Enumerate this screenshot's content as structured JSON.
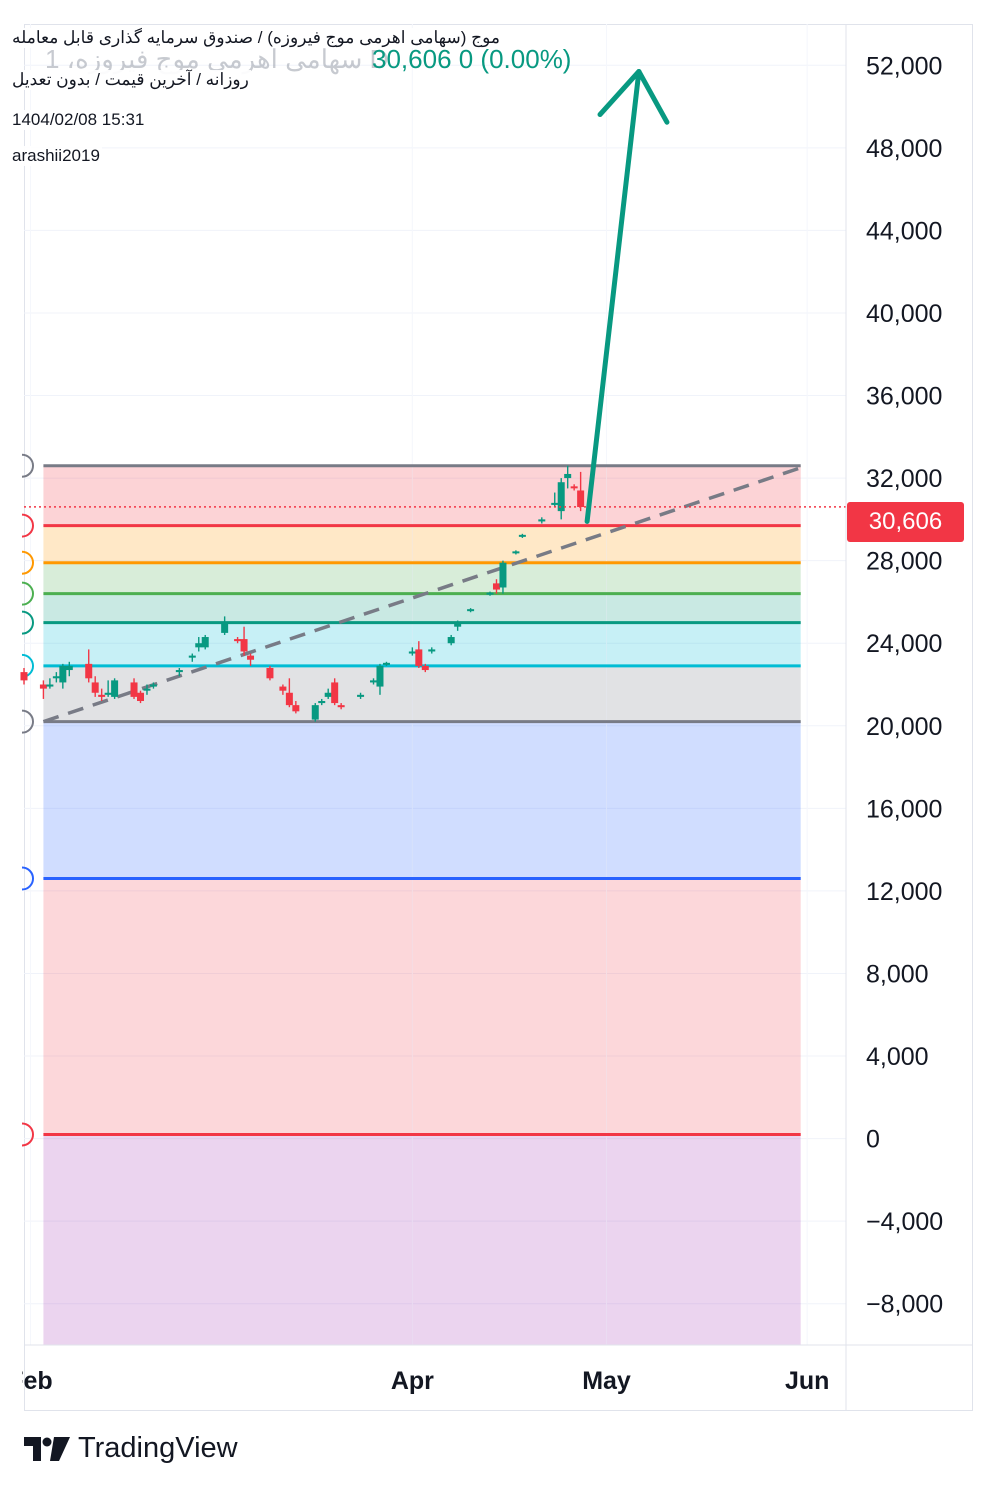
{
  "header": {
    "title_line": "موج (سهامی اهرمی موج فیروزه) / صندوق سرمایه گذاری قابل معامله",
    "subtitle_line": "روزانه / آخرین قیمت / بدون تعدیل",
    "datetime": "1404/02/08 15:31",
    "author": "arashii2019",
    "ghost_symbol": "1 ،سهامی اهرمی موج فیروزه  D",
    "ghost_price": "30,606  0 (0.00%)"
  },
  "branding": {
    "name": "TradingView"
  },
  "colors": {
    "up": "#089981",
    "down": "#f23645",
    "arrow": "#089981",
    "trendline": "#787b86",
    "level_gray": "#787b86",
    "level_red": "#f23645",
    "level_orange": "#ff9800",
    "level_green": "#4caf50",
    "level_teal": "#089981",
    "level_cyan": "#00bcd4",
    "level_blue": "#2962ff"
  },
  "chart_data": {
    "type": "candlestick",
    "title": "",
    "xlabel": "",
    "ylabel": "",
    "last_price": 30606,
    "last_price_label": "30,606",
    "y_ticks": [
      -8000,
      -4000,
      0,
      4000,
      8000,
      12000,
      16000,
      20000,
      24000,
      28000,
      32000,
      36000,
      40000,
      44000,
      48000,
      52000
    ],
    "y_tick_labels": [
      "−8,000",
      "−4,000",
      "0",
      "4,000",
      "8,000",
      "12,000",
      "16,000",
      "20,000",
      "24,000",
      "28,000",
      "32,000",
      "36,000",
      "40,000",
      "44,000",
      "48,000",
      "52,000"
    ],
    "x_ticks": [
      {
        "label": "Feb",
        "date": "2025-02-01"
      },
      {
        "label": "Apr",
        "date": "2025-04-01"
      },
      {
        "label": "May",
        "date": "2025-05-01"
      },
      {
        "label": "Jun",
        "date": "2025-06-01"
      }
    ],
    "x_range": [
      "2025-01-31",
      "2025-06-07"
    ],
    "y_range": [
      -10000,
      54000
    ],
    "grid": true,
    "fib_levels": [
      {
        "price": 32600,
        "color": "#787b86"
      },
      {
        "price": 29700,
        "color": "#f23645"
      },
      {
        "price": 27900,
        "color": "#ff9800"
      },
      {
        "price": 26400,
        "color": "#4caf50"
      },
      {
        "price": 25000,
        "color": "#089981"
      },
      {
        "price": 22900,
        "color": "#00bcd4"
      },
      {
        "price": 20200,
        "color": "#787b86"
      },
      {
        "price": 12600,
        "color": "#2962ff"
      },
      {
        "price": 200,
        "color": "#f23645"
      }
    ],
    "fib_zones": [
      {
        "from": 32600,
        "to": 29700,
        "color": "#f23645",
        "opacity": 0.22
      },
      {
        "from": 29700,
        "to": 27900,
        "color": "#ff9800",
        "opacity": 0.22
      },
      {
        "from": 27900,
        "to": 26400,
        "color": "#4caf50",
        "opacity": 0.22
      },
      {
        "from": 26400,
        "to": 25000,
        "color": "#089981",
        "opacity": 0.22
      },
      {
        "from": 25000,
        "to": 22900,
        "color": "#00bcd4",
        "opacity": 0.22
      },
      {
        "from": 22900,
        "to": 20200,
        "color": "#787b86",
        "opacity": 0.22
      },
      {
        "from": 20200,
        "to": 12600,
        "color": "#2962ff",
        "opacity": 0.22
      },
      {
        "from": 12600,
        "to": 200,
        "color": "#f23645",
        "opacity": 0.2
      },
      {
        "from": 200,
        "to": -10000,
        "color": "#9c27b0",
        "opacity": 0.2
      }
    ],
    "fib_range": [
      "2025-02-03",
      "2025-05-31"
    ],
    "trendline": {
      "from": {
        "date": "2025-02-03",
        "price": 20200
      },
      "to": {
        "date": "2025-05-31",
        "price": 32500
      }
    },
    "arrow": {
      "from": {
        "date": "2025-04-28",
        "price": 29900
      },
      "to": {
        "date": "2025-05-06",
        "price": 51700
      }
    },
    "candles": [
      {
        "date": "2025-01-31",
        "o": 22600,
        "h": 22800,
        "c": 22200,
        "l": 22000
      },
      {
        "date": "2025-02-03",
        "o": 22000,
        "h": 22200,
        "c": 21800,
        "l": 21300
      },
      {
        "date": "2025-02-04",
        "o": 21900,
        "h": 22300,
        "c": 22000,
        "l": 21800
      },
      {
        "date": "2025-02-05",
        "o": 22300,
        "h": 22600,
        "c": 22400,
        "l": 22100
      },
      {
        "date": "2025-02-06",
        "o": 22100,
        "h": 23000,
        "c": 22900,
        "l": 21800
      },
      {
        "date": "2025-02-07",
        "o": 22700,
        "h": 23100,
        "c": 22900,
        "l": 22400
      },
      {
        "date": "2025-02-10",
        "o": 23000,
        "h": 23700,
        "c": 22300,
        "l": 22100
      },
      {
        "date": "2025-02-11",
        "o": 22100,
        "h": 22400,
        "c": 21600,
        "l": 21400
      },
      {
        "date": "2025-02-12",
        "o": 21500,
        "h": 21800,
        "c": 21400,
        "l": 21200
      },
      {
        "date": "2025-02-13",
        "o": 21500,
        "h": 22200,
        "c": 21600,
        "l": 21400
      },
      {
        "date": "2025-02-14",
        "o": 21400,
        "h": 22300,
        "c": 22200,
        "l": 21300
      },
      {
        "date": "2025-02-17",
        "o": 22100,
        "h": 22300,
        "c": 21400,
        "l": 21300
      },
      {
        "date": "2025-02-18",
        "o": 21600,
        "h": 21700,
        "c": 21200,
        "l": 21100
      },
      {
        "date": "2025-02-19",
        "o": 21700,
        "h": 22000,
        "c": 21800,
        "l": 21500
      },
      {
        "date": "2025-02-20",
        "o": 21900,
        "h": 22100,
        "c": 22000,
        "l": 21800
      },
      {
        "date": "2025-02-24",
        "o": 22600,
        "h": 22800,
        "c": 22700,
        "l": 22400
      },
      {
        "date": "2025-02-26",
        "o": 23300,
        "h": 23500,
        "c": 23400,
        "l": 23100
      },
      {
        "date": "2025-02-27",
        "o": 23800,
        "h": 24300,
        "c": 24000,
        "l": 23600
      },
      {
        "date": "2025-02-28",
        "o": 23800,
        "h": 24400,
        "c": 24300,
        "l": 23700
      },
      {
        "date": "2025-03-03",
        "o": 24500,
        "h": 25300,
        "c": 25000,
        "l": 24400
      },
      {
        "date": "2025-03-05",
        "o": 24200,
        "h": 24300,
        "c": 24100,
        "l": 24000
      },
      {
        "date": "2025-03-06",
        "o": 24200,
        "h": 24800,
        "c": 23600,
        "l": 23400
      },
      {
        "date": "2025-03-07",
        "o": 23400,
        "h": 23500,
        "c": 23200,
        "l": 22900
      },
      {
        "date": "2025-03-10",
        "o": 22800,
        "h": 22900,
        "c": 22300,
        "l": 22200
      },
      {
        "date": "2025-03-12",
        "o": 21900,
        "h": 22000,
        "c": 21700,
        "l": 21500
      },
      {
        "date": "2025-03-13",
        "o": 21600,
        "h": 22300,
        "c": 21000,
        "l": 20900
      },
      {
        "date": "2025-03-14",
        "o": 21000,
        "h": 21200,
        "c": 20700,
        "l": 20600
      },
      {
        "date": "2025-03-17",
        "o": 20300,
        "h": 21100,
        "c": 21000,
        "l": 20200
      },
      {
        "date": "2025-03-18",
        "o": 21100,
        "h": 21300,
        "c": 21200,
        "l": 21000
      },
      {
        "date": "2025-03-19",
        "o": 21400,
        "h": 21800,
        "c": 21600,
        "l": 21300
      },
      {
        "date": "2025-03-20",
        "o": 22100,
        "h": 22300,
        "c": 21100,
        "l": 21000
      },
      {
        "date": "2025-03-21",
        "o": 21000,
        "h": 21100,
        "c": 20900,
        "l": 20800
      },
      {
        "date": "2025-03-24",
        "o": 21400,
        "h": 21600,
        "c": 21500,
        "l": 21300
      },
      {
        "date": "2025-03-26",
        "o": 22100,
        "h": 22300,
        "c": 22200,
        "l": 22000
      },
      {
        "date": "2025-03-27",
        "o": 21900,
        "h": 23000,
        "c": 22900,
        "l": 21500
      },
      {
        "date": "2025-03-28",
        "o": 23000,
        "h": 23100,
        "c": 23050,
        "l": 22900
      },
      {
        "date": "2025-04-01",
        "o": 23500,
        "h": 23800,
        "c": 23600,
        "l": 23400
      },
      {
        "date": "2025-04-02",
        "o": 23700,
        "h": 24100,
        "c": 22900,
        "l": 22800
      },
      {
        "date": "2025-04-03",
        "o": 22900,
        "h": 23000,
        "c": 22700,
        "l": 22600
      },
      {
        "date": "2025-04-04",
        "o": 23600,
        "h": 23800,
        "c": 23700,
        "l": 23500
      },
      {
        "date": "2025-04-07",
        "o": 24000,
        "h": 24400,
        "c": 24300,
        "l": 23900
      },
      {
        "date": "2025-04-08",
        "o": 24800,
        "h": 25100,
        "c": 25000,
        "l": 24600
      },
      {
        "date": "2025-04-10",
        "o": 25600,
        "h": 25700,
        "c": 25650,
        "l": 25500
      },
      {
        "date": "2025-04-13",
        "o": 26400,
        "h": 26500,
        "c": 26450,
        "l": 26300
      },
      {
        "date": "2025-04-14",
        "o": 26900,
        "h": 27100,
        "c": 26600,
        "l": 26400
      },
      {
        "date": "2025-04-15",
        "o": 26700,
        "h": 28000,
        "c": 27900,
        "l": 26400
      },
      {
        "date": "2025-04-17",
        "o": 28400,
        "h": 28500,
        "c": 28450,
        "l": 28300
      },
      {
        "date": "2025-04-18",
        "o": 29200,
        "h": 29300,
        "c": 29250,
        "l": 29100
      },
      {
        "date": "2025-04-21",
        "o": 29900,
        "h": 30100,
        "c": 30000,
        "l": 29800
      },
      {
        "date": "2025-04-23",
        "o": 30700,
        "h": 31300,
        "c": 30800,
        "l": 30600
      },
      {
        "date": "2025-04-24",
        "o": 30400,
        "h": 32000,
        "c": 31800,
        "l": 30000
      },
      {
        "date": "2025-04-25",
        "o": 32000,
        "h": 32600,
        "c": 32200,
        "l": 31500
      },
      {
        "date": "2025-04-26",
        "o": 31600,
        "h": 31700,
        "c": 31550,
        "l": 31400
      },
      {
        "date": "2025-04-27",
        "o": 31400,
        "h": 32300,
        "c": 30600,
        "l": 30400
      }
    ]
  }
}
